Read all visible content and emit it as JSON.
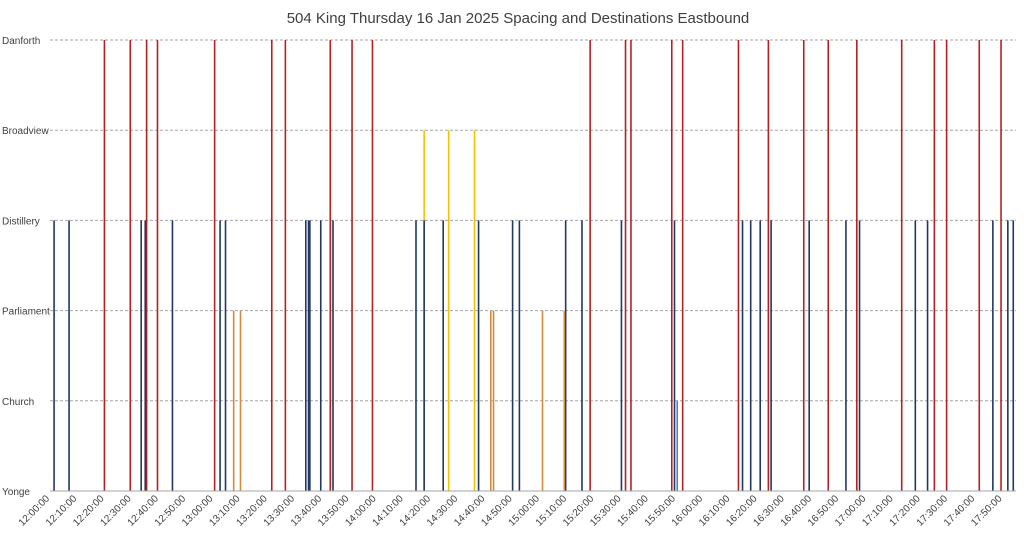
{
  "chart_data": {
    "type": "bar",
    "title": "504 King Thursday 16 Jan 2025 Spacing and Destinations Eastbound",
    "xlabel": "",
    "ylabel": "",
    "y_categories": [
      "Yonge",
      "Church",
      "Parliament",
      "Distillery",
      "Broadview",
      "Danforth"
    ],
    "x_range_minutes": [
      0,
      355
    ],
    "x_ticks": [
      "12:00:00",
      "12:10:00",
      "12:20:00",
      "12:30:00",
      "12:40:00",
      "12:50:00",
      "13:00:00",
      "13:10:00",
      "13:20:00",
      "13:30:00",
      "13:40:00",
      "13:50:00",
      "14:00:00",
      "14:10:00",
      "14:20:00",
      "14:30:00",
      "14:40:00",
      "14:50:00",
      "15:00:00",
      "15:10:00",
      "15:20:00",
      "15:30:00",
      "15:40:00",
      "15:50:00",
      "16:00:00",
      "16:10:00",
      "16:20:00",
      "16:30:00",
      "16:40:00",
      "16:50:00",
      "17:00:00",
      "17:10:00",
      "17:20:00",
      "17:30:00",
      "17:40:00",
      "17:50:00"
    ],
    "grid": true,
    "legend": "none",
    "colors": {
      "Danforth": "#b22222",
      "Broadview": "#f2c200",
      "Distillery": "#1f3864",
      "Parliament": "#d28b3c",
      "Church": "#4a86c5",
      "axis": "#a6a6a6",
      "gridline": "#a6a6a6",
      "text": "#404040"
    },
    "series": [
      {
        "destination": "Danforth",
        "departure_minutes": [
          20,
          29.5,
          35.5,
          39.5,
          60.5,
          81.5,
          86.5,
          103,
          111,
          118.5,
          198.5,
          211.5,
          213.5,
          228.5,
          232.5,
          253,
          264,
          277,
          286,
          296.5,
          313,
          325,
          329.5,
          341.5,
          349.5
        ]
      },
      {
        "destination": "Broadview",
        "departure_minutes": [
          137.5,
          146.5,
          156
        ]
      },
      {
        "destination": "Distillery",
        "departure_minutes": [
          1.5,
          7,
          33.5,
          35,
          45,
          62.5,
          64.5,
          94,
          95,
          95.5,
          99.5,
          104,
          134.5,
          137.5,
          144.5,
          157.5,
          170,
          172.5,
          189.5,
          195.5,
          210,
          229.5,
          254.5,
          257.5,
          261,
          265,
          279,
          292.5,
          297.5,
          318,
          322.5,
          346.5,
          352,
          354
        ]
      },
      {
        "destination": "Parliament",
        "departure_minutes": [
          67.5,
          70,
          162,
          163,
          181,
          189
        ]
      },
      {
        "destination": "Church",
        "departure_minutes": [
          230.5
        ]
      }
    ]
  }
}
